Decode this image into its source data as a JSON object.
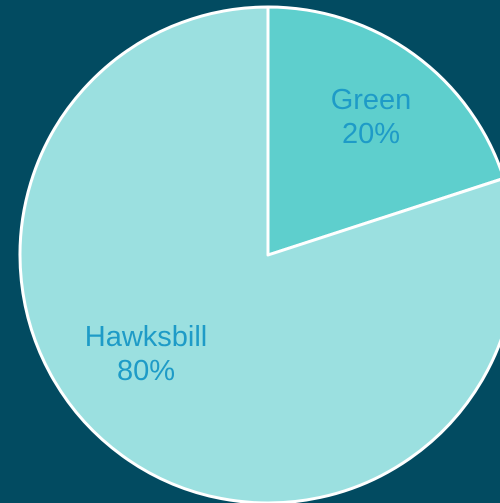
{
  "colors": {
    "background": "#024B61",
    "outline": "#FFFFFF",
    "label": "#1E9BC7"
  },
  "chart_data": {
    "type": "pie",
    "title": "",
    "start_angle_deg": 0,
    "direction": "clockwise",
    "slices": [
      {
        "category": "Green",
        "value": 20,
        "value_label": "20%",
        "color": "#5ECFCD"
      },
      {
        "category": "Hawksbill",
        "value": 80,
        "value_label": "80%",
        "color": "#9BE0E0"
      }
    ]
  }
}
